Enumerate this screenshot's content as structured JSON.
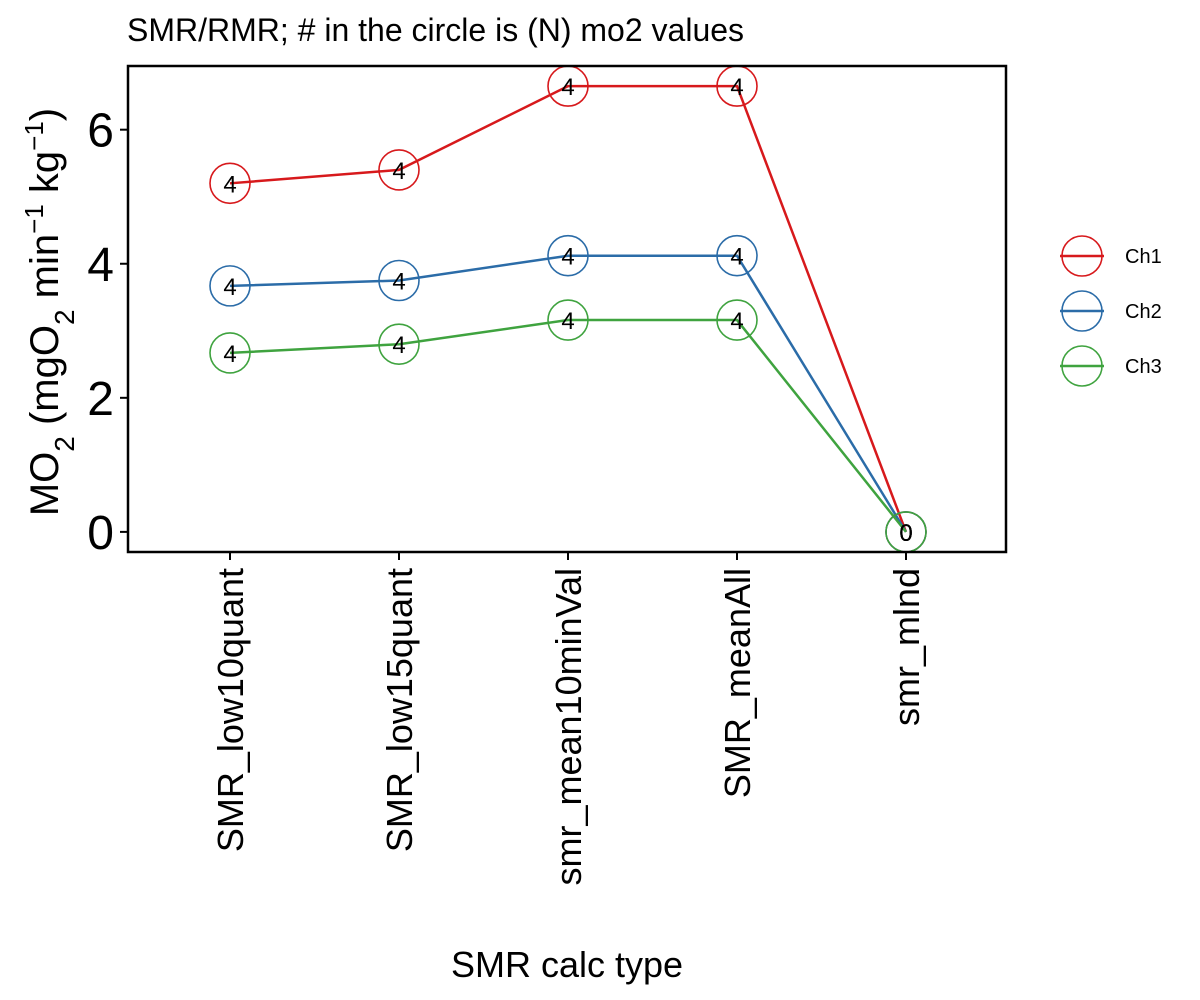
{
  "chart_data": {
    "type": "line",
    "title": "SMR/RMR; # in the circle is (N) mo2 values",
    "xlabel": "SMR calc type",
    "ylabel": {
      "parts": [
        {
          "text": "MO",
          "shift": "base"
        },
        {
          "text": "2",
          "shift": "sub"
        },
        {
          "text": " (mgO",
          "shift": "base"
        },
        {
          "text": "2",
          "shift": "sub"
        },
        {
          "text": " min",
          "shift": "base"
        },
        {
          "text": "−1",
          "shift": "sup"
        },
        {
          "text": " kg",
          "shift": "base"
        },
        {
          "text": "−1",
          "shift": "sup"
        },
        {
          "text": ")",
          "shift": "base"
        }
      ]
    },
    "categories": [
      "SMR_low10quant",
      "SMR_low15quant",
      "smr_mean10minVal",
      "SMR_meanAll",
      "smr_mlnd"
    ],
    "ylim": [
      -0.3,
      6.95
    ],
    "yticks": [
      0,
      2,
      4,
      6
    ],
    "grid": false,
    "legend_position": "right",
    "series": [
      {
        "name": "Ch1",
        "color": "#d7191c",
        "values": [
          5.2,
          5.4,
          6.65,
          6.65,
          0
        ],
        "n": [
          "4",
          "4",
          "4",
          "4",
          "0"
        ]
      },
      {
        "name": "Ch2",
        "color": "#2b6ca8",
        "values": [
          3.67,
          3.75,
          4.12,
          4.12,
          0
        ],
        "n": [
          "4",
          "4",
          "4",
          "4",
          "0"
        ]
      },
      {
        "name": "Ch3",
        "color": "#3fa33f",
        "values": [
          2.67,
          2.8,
          3.16,
          3.16,
          0
        ],
        "n": [
          "4",
          "4",
          "4",
          "4",
          "0"
        ]
      }
    ]
  }
}
